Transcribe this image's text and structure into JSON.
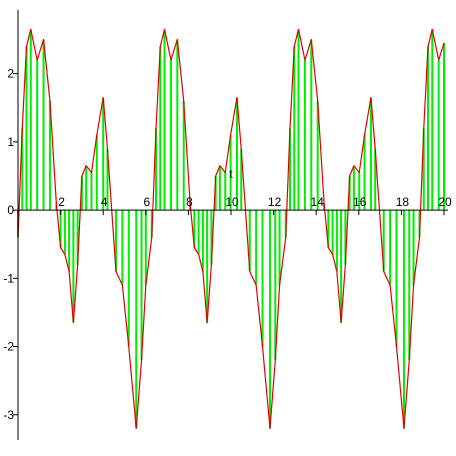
{
  "chart_data": {
    "type": "stem",
    "x_label": "t",
    "x": [
      0,
      0.2,
      0.4,
      0.6,
      0.9,
      1.2,
      1.5,
      1.8,
      2.0,
      2.2,
      2.4,
      2.6,
      2.8,
      3.0,
      3.2,
      3.45,
      3.7,
      4.0,
      4.2,
      4.4,
      4.6,
      4.9,
      5.2,
      5.55,
      5.8,
      6.0,
      6.28,
      6.48,
      6.68,
      6.88,
      7.18,
      7.48,
      7.78,
      8.08,
      8.28,
      8.48,
      8.68,
      8.88,
      9.08,
      9.28,
      9.48,
      9.73,
      9.98,
      10.28,
      10.48,
      10.68,
      10.88,
      11.18,
      11.48,
      11.83,
      12.08,
      12.28,
      12.57,
      12.77,
      12.97,
      13.17,
      13.47,
      13.77,
      14.07,
      14.37,
      14.57,
      14.77,
      14.97,
      15.17,
      15.37,
      15.57,
      15.77,
      16.02,
      16.27,
      16.57,
      16.77,
      16.97,
      17.17,
      17.47,
      17.77,
      18.12,
      18.37,
      18.57,
      18.85,
      19.05,
      19.25,
      19.45,
      19.75,
      20
    ],
    "values": [
      -0.4,
      1.2,
      2.4,
      2.65,
      2.2,
      2.5,
      1.6,
      0.1,
      -0.55,
      -0.65,
      -0.9,
      -1.65,
      -0.8,
      0.5,
      0.65,
      0.55,
      1.1,
      1.65,
      0.9,
      0,
      -0.9,
      -1.1,
      -2,
      -3.2,
      -2.2,
      -1.1,
      -0.4,
      1.2,
      2.4,
      2.65,
      2.2,
      2.5,
      1.6,
      0.1,
      -0.55,
      -0.65,
      -0.9,
      -1.65,
      -0.8,
      0.5,
      0.65,
      0.55,
      1.1,
      1.65,
      0.9,
      0,
      -0.9,
      -1.1,
      -2,
      -3.2,
      -2.2,
      -1.1,
      -0.4,
      1.2,
      2.4,
      2.65,
      2.2,
      2.5,
      1.6,
      0.1,
      -0.55,
      -0.65,
      -0.9,
      -1.65,
      -0.8,
      0.5,
      0.65,
      0.55,
      1.1,
      1.65,
      0.9,
      0,
      -0.9,
      -1.1,
      -2,
      -3.2,
      -2.2,
      -1.1,
      -0.4,
      1.2,
      2.4,
      2.65,
      2.2,
      2.45
    ],
    "line_color": "#e00000",
    "stem_color": "#00ee00",
    "xlim": [
      0,
      20
    ],
    "ylim": [
      -3.37,
      2.86
    ],
    "xticks": [
      2,
      4,
      6,
      8,
      10,
      12,
      14,
      16,
      18,
      20
    ],
    "yticks": [
      -3,
      -2,
      -1,
      0,
      1,
      2
    ]
  }
}
